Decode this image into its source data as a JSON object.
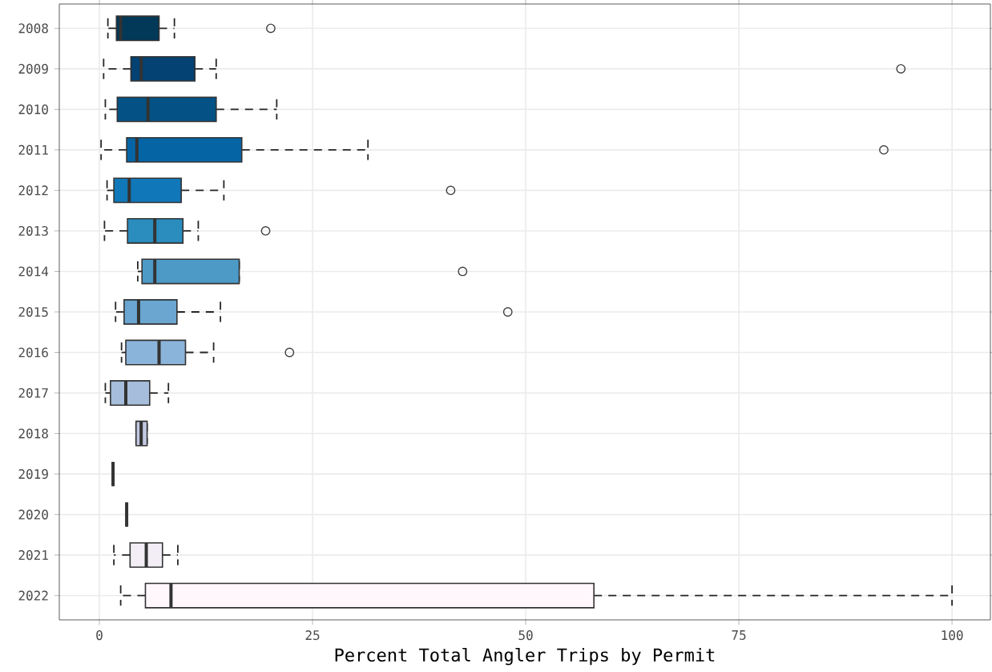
{
  "chart_data": {
    "type": "box",
    "orientation": "horizontal",
    "xlabel": "Percent Total Angler Trips by Permit",
    "categories": [
      "2008",
      "2009",
      "2010",
      "2011",
      "2012",
      "2013",
      "2014",
      "2015",
      "2016",
      "2017",
      "2018",
      "2019",
      "2020",
      "2021",
      "2022"
    ],
    "colors": [
      "#023858",
      "#034272",
      "#045285",
      "#0565a4",
      "#1077b8",
      "#2b8cbe",
      "#4d9ac7",
      "#6aa6d0",
      "#8bb4da",
      "#a6bddb",
      "#c2c8e2",
      "#333333",
      "#333333",
      "#f3eef6",
      "#fff7fb"
    ],
    "boxes": [
      {
        "low": 1.0,
        "q1": 2.0,
        "median": 2.5,
        "q3": 7.0,
        "high": 8.8,
        "outliers": [
          20.1
        ]
      },
      {
        "low": 0.5,
        "q1": 3.7,
        "median": 4.9,
        "q3": 11.2,
        "high": 13.7,
        "outliers": [
          94.0
        ]
      },
      {
        "low": 0.7,
        "q1": 2.1,
        "median": 5.7,
        "q3": 13.7,
        "high": 20.8
      },
      {
        "low": 0.2,
        "q1": 3.2,
        "median": 4.4,
        "q3": 16.7,
        "high": 31.5,
        "outliers": [
          92.0
        ]
      },
      {
        "low": 0.9,
        "q1": 1.7,
        "median": 3.5,
        "q3": 9.6,
        "high": 14.6,
        "outliers": [
          41.2
        ]
      },
      {
        "low": 0.6,
        "q1": 3.3,
        "median": 6.5,
        "q3": 9.8,
        "high": 11.6,
        "outliers": [
          19.5
        ]
      },
      {
        "low": 4.5,
        "q1": 5.0,
        "median": 6.5,
        "q3": 16.4,
        "high": 16.4,
        "outliers": [
          42.6
        ]
      },
      {
        "low": 1.9,
        "q1": 2.9,
        "median": 4.6,
        "q3": 9.1,
        "high": 14.2,
        "outliers": [
          47.9
        ]
      },
      {
        "low": 2.6,
        "q1": 3.1,
        "median": 7.0,
        "q3": 10.1,
        "high": 13.4,
        "outliers": [
          22.3
        ]
      },
      {
        "low": 0.7,
        "q1": 1.3,
        "median": 3.1,
        "q3": 5.9,
        "high": 8.1
      },
      {
        "low": 4.3,
        "q1": 4.3,
        "median": 4.9,
        "q3": 5.6,
        "high": 5.6
      },
      {
        "low": 1.6,
        "q1": 1.6,
        "median": 1.6,
        "q3": 1.6,
        "high": 1.6
      },
      {
        "low": 3.2,
        "q1": 3.2,
        "median": 3.2,
        "q3": 3.2,
        "high": 3.2
      },
      {
        "low": 1.7,
        "q1": 3.6,
        "median": 5.5,
        "q3": 7.4,
        "high": 9.2
      },
      {
        "low": 2.5,
        "q1": 5.4,
        "median": 8.4,
        "q3": 58.0,
        "high": 100.0
      }
    ],
    "xlim": [
      -4.7,
      104.5
    ],
    "xticks": [
      0,
      25,
      50,
      75,
      100
    ],
    "grid": true,
    "line_style": "dashed"
  }
}
